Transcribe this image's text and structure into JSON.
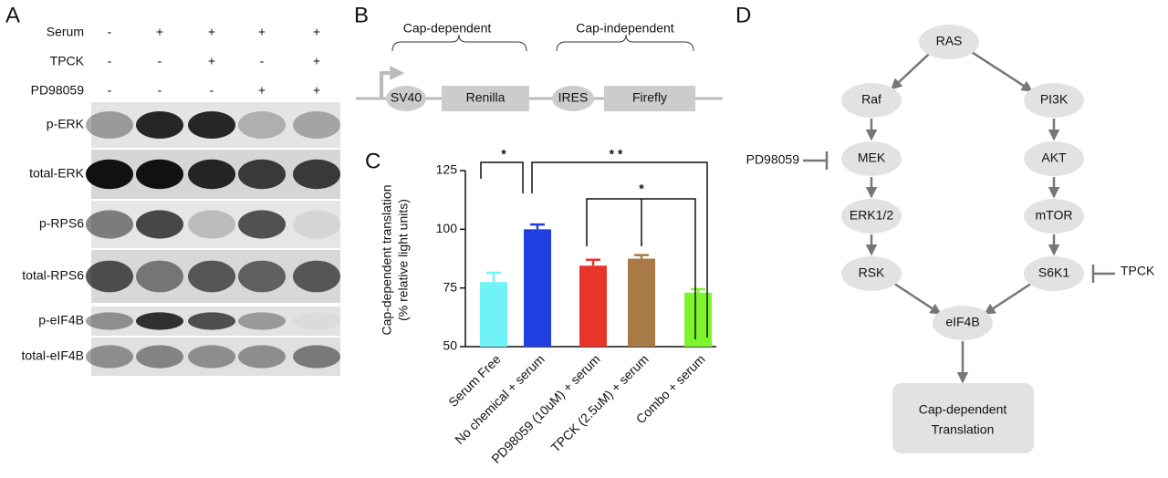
{
  "panel_a": {
    "label": "A",
    "conditions": [
      {
        "name": "Serum",
        "marks": [
          "-",
          "+",
          "+",
          "+",
          "+"
        ]
      },
      {
        "name": "TPCK",
        "marks": [
          "-",
          "-",
          "+",
          "-",
          "+"
        ]
      },
      {
        "name": "PD98059",
        "marks": [
          "-",
          "-",
          "-",
          "+",
          "+"
        ]
      }
    ],
    "blots": [
      "p-ERK",
      "total-ERK",
      "p-RPS6",
      "total-RPS6",
      "p-eIF4B",
      "total-eIF4B"
    ]
  },
  "panel_b": {
    "label": "B",
    "groups": [
      "Cap-dependent",
      "Cap-independent"
    ],
    "elements": [
      "SV40",
      "Renilla",
      "IRES",
      "Firefly"
    ]
  },
  "chart_data": {
    "type": "bar",
    "panel_label": "C",
    "ylabel": [
      "Cap-dependent translation",
      "(% relative light units)"
    ],
    "categories": [
      "Serum Free",
      "No chemical + serum",
      "PD98059 (10uM) + serum",
      "TPCK (2.5uM) + serum",
      "Combo + serum"
    ],
    "values": [
      77.5,
      100,
      84.5,
      87.5,
      73
    ],
    "errors": [
      4,
      2,
      2.5,
      1.5,
      1.5
    ],
    "colors": [
      "#6ff3f7",
      "#1f3fe0",
      "#e8352a",
      "#a97a45",
      "#7cf52a"
    ],
    "ylim": [
      50,
      125
    ],
    "yticks": [
      50,
      75,
      100,
      125
    ],
    "annotations": [
      "*",
      "* *",
      "*"
    ]
  },
  "panel_d": {
    "label": "D",
    "nodes": [
      "RAS",
      "Raf",
      "PI3K",
      "MEK",
      "AKT",
      "ERK1/2",
      "mTOR",
      "RSK",
      "S6K1",
      "eIF4B"
    ],
    "output": [
      "Cap-dependent",
      "Translation"
    ],
    "inhibitors": [
      "PD98059",
      "TPCK"
    ]
  }
}
